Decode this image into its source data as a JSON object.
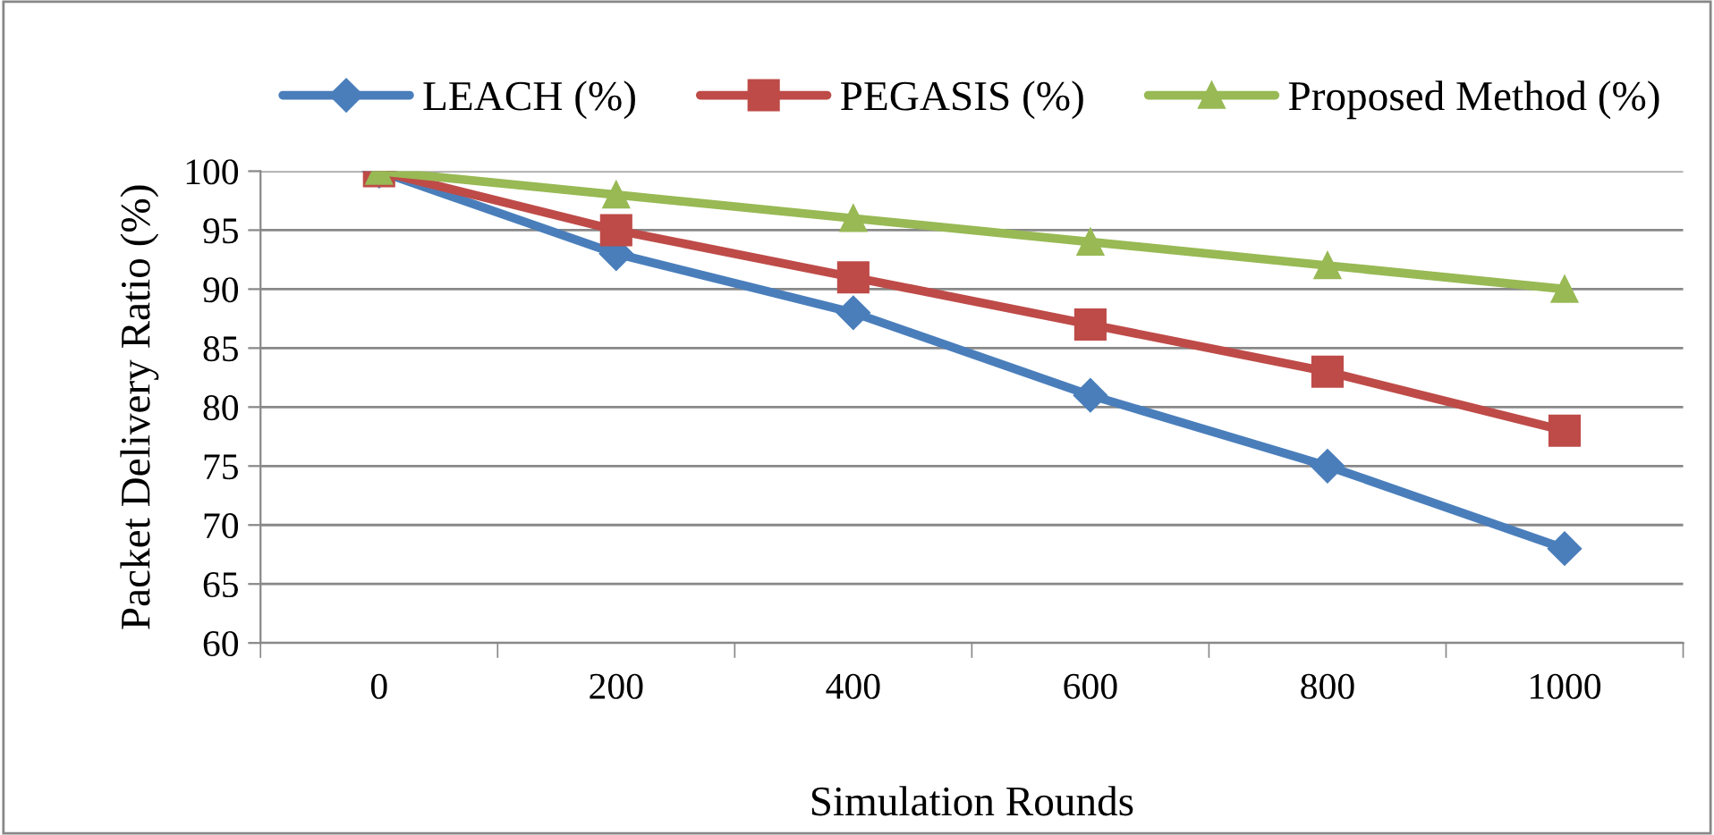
{
  "chart_data": {
    "type": "line",
    "xlabel": "Simulation Rounds",
    "ylabel": "Packet Delivery Ratio (%)",
    "categories": [
      "0",
      "200",
      "400",
      "600",
      "800",
      "1000"
    ],
    "series": [
      {
        "name": "LEACH (%)",
        "color": "#4a7ebb",
        "marker": "diamond",
        "values": [
          100,
          93,
          88,
          81,
          75,
          68
        ]
      },
      {
        "name": "PEGASIS (%)",
        "color": "#be4b48",
        "marker": "square",
        "values": [
          100,
          95,
          91,
          87,
          83,
          78
        ]
      },
      {
        "name": "Proposed Method (%)",
        "color": "#98b954",
        "marker": "triangle",
        "values": [
          100,
          98,
          96,
          94,
          92,
          90
        ]
      }
    ],
    "ylim": [
      60,
      100
    ],
    "yticks": [
      60,
      65,
      70,
      75,
      80,
      85,
      90,
      95,
      100
    ],
    "grid": "y",
    "legend": "top",
    "line_style": "solid"
  }
}
